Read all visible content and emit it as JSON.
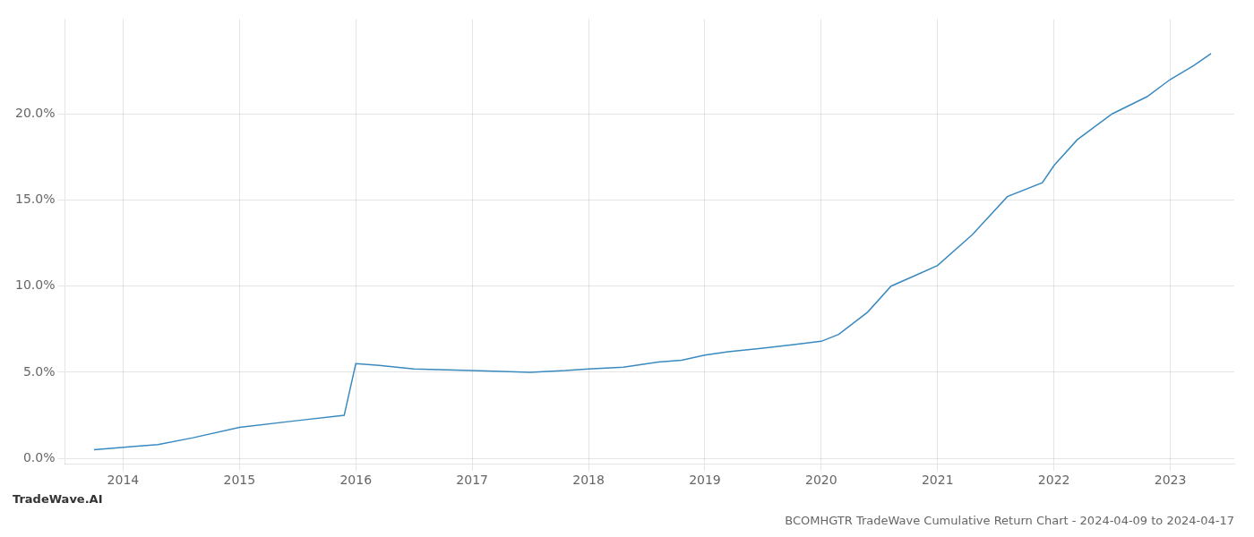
{
  "chart_data": {
    "type": "line",
    "title": "BCOMHGTR TradeWave Cumulative Return Chart - 2024-04-09 to 2024-04-17",
    "annotations": [
      "TradeWave.AI"
    ],
    "x": [
      2013.75,
      2014.1,
      2014.3,
      2014.6,
      2015.0,
      2015.5,
      2015.9,
      2016.0,
      2016.2,
      2016.5,
      2017.0,
      2017.5,
      2017.8,
      2018.0,
      2018.3,
      2018.6,
      2018.8,
      2019.0,
      2019.2,
      2019.5,
      2019.75,
      2020.0,
      2020.15,
      2020.4,
      2020.6,
      2020.8,
      2021.0,
      2021.3,
      2021.6,
      2021.9,
      2022.0,
      2022.2,
      2022.5,
      2022.8,
      2023.0,
      2023.2,
      2023.35
    ],
    "values": [
      0.005,
      0.007,
      0.008,
      0.012,
      0.018,
      0.022,
      0.025,
      0.055,
      0.054,
      0.052,
      0.051,
      0.05,
      0.051,
      0.052,
      0.053,
      0.056,
      0.057,
      0.06,
      0.062,
      0.064,
      0.066,
      0.068,
      0.072,
      0.085,
      0.1,
      0.106,
      0.112,
      0.13,
      0.152,
      0.16,
      0.17,
      0.185,
      0.2,
      0.21,
      0.22,
      0.228,
      0.235
    ],
    "color": "#3a8abf",
    "xlim": [
      2013.5,
      2023.55
    ],
    "xticks": [
      2014,
      2015,
      2016,
      2017,
      2018,
      2019,
      2020,
      2021,
      2022,
      2023
    ],
    "ylim": [
      -0.003,
      0.255
    ],
    "yticks": [
      {
        "value": 0.0,
        "label": "0.0%"
      },
      {
        "value": 0.05,
        "label": "5.0%"
      },
      {
        "value": 0.1,
        "label": "10.0%"
      },
      {
        "value": 0.15,
        "label": "15.0%"
      },
      {
        "value": 0.2,
        "label": "20.0%"
      }
    ],
    "grid": true
  }
}
